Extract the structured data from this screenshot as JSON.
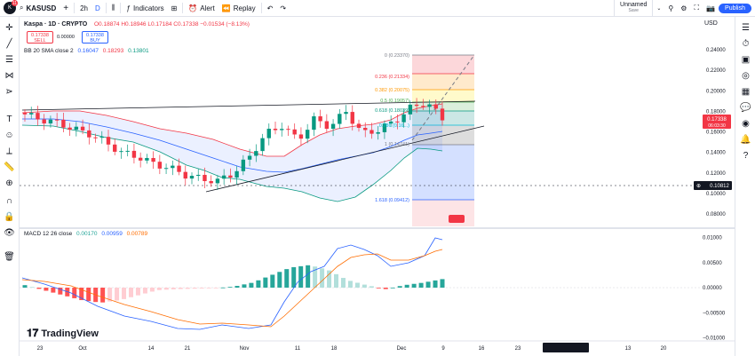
{
  "topbar": {
    "avatar_initial": "K",
    "notif_count": "11",
    "symbol": "KASUSD",
    "title": "Kaspa · 1D · CRYPTO",
    "interval": "2h",
    "interval_d": "D",
    "indicators": "Indicators",
    "alert": "Alert",
    "replay": "Replay",
    "layout_name": "Unnamed",
    "layout_status": "Save",
    "publish": "Publish",
    "ohlc": "O0.18874 H0.18946 L0.17184 C0.17338 −0.01534 (−8.13%)",
    "usd": "USD"
  },
  "price_boxes": {
    "sell_price": "0.17338",
    "sell_label": "SELL",
    "spread": "0.00000",
    "buy_price": "0.17338",
    "buy_label": "BUY"
  },
  "bb_legend": {
    "label": "BB 20 SMA close 2",
    "v1": "0.16047",
    "v2": "0.18293",
    "v3": "0.13801"
  },
  "macd_legend": {
    "label": "MACD 12 26 close",
    "v1": "0.00170",
    "v2": "0.00959",
    "v3": "0.00789"
  },
  "fib_levels": [
    {
      "label": "0 (0.23370)",
      "color": "#787b86"
    },
    {
      "label": "0.236 (0.21334)",
      "color": "#f23645"
    },
    {
      "label": "0.382 (0.20075)",
      "color": "#ff9800"
    },
    {
      "label": "0.5 (0.19057)",
      "color": "#4caf50"
    },
    {
      "label": "0.618 (0.18039)",
      "color": "#089981"
    },
    {
      "label": "0.786 (0.16...)",
      "color": "#00bcd4"
    },
    {
      "label": "1 (0.14741)",
      "color": "#787b86"
    },
    {
      "label": "1.618 (0.09412)",
      "color": "#2962ff"
    }
  ],
  "price_axis": [
    "0.24000",
    "0.22000",
    "0.20000",
    "0.18000",
    "0.16000",
    "0.14000",
    "0.12000",
    "0.10000",
    "0.08000"
  ],
  "price_axis_highlight": {
    "price": "0.17338",
    "countdown": "06:03:30",
    "crosshair": "0.10812"
  },
  "macd_axis": [
    "0.01000",
    "0.00500",
    "0.00000",
    "−0.00500",
    "−0.01000"
  ],
  "time_axis": [
    "23",
    "Oct",
    "14",
    "21",
    "Nov",
    "11",
    "18",
    "Dec",
    "9",
    "16",
    "23",
    "Wed 01 Jan '25",
    "13",
    "20"
  ],
  "watermark": "TradingView",
  "colors": {
    "up": "#089981",
    "down": "#f23645",
    "bb_upper": "#f23645",
    "bb_basis": "#2962ff",
    "bb_lower": "#089981",
    "macd": "#2962ff",
    "signal": "#ff6d00"
  },
  "chart_data": {
    "type": "candlestick",
    "title": "Kaspa · 1D · CRYPTO",
    "candles_close_approx": [
      0.177,
      0.172,
      0.169,
      0.163,
      0.158,
      0.15,
      0.14,
      0.136,
      0.129,
      0.125,
      0.118,
      0.114,
      0.112,
      0.12,
      0.136,
      0.158,
      0.166,
      0.152,
      0.172,
      0.165,
      0.18,
      0.158,
      0.162,
      0.17,
      0.183,
      0.189,
      0.173
    ],
    "macd_histogram_approx": [
      0.0005,
      -0.0005,
      -0.0015,
      -0.0025,
      -0.003,
      -0.0025,
      -0.0015,
      -0.0005,
      -0.0003,
      -0.0002,
      -0.0001,
      0.0002,
      0.001,
      0.0025,
      0.004,
      0.0045,
      0.0035,
      0.0015,
      0.0005,
      -0.0003,
      0.0005,
      0.001,
      0.0017
    ],
    "ylim": [
      0.075,
      0.245
    ],
    "macd_ylim": [
      -0.011,
      0.011
    ]
  }
}
